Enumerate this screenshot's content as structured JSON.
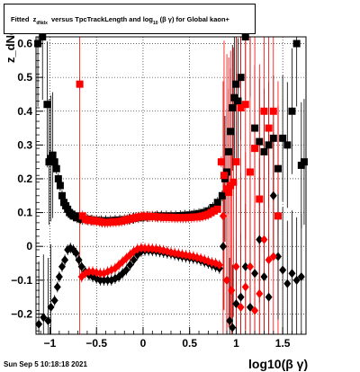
{
  "title": {
    "prefix": "Fitted",
    "z": "z",
    "z_sub": "dNdx",
    "middle": "versus TpcTrackLength and log",
    "log_sub": "10",
    "suffix": "(β γ) for Global kaon+"
  },
  "timestamp": "Sun Sep  5 10:18:18 2021",
  "chart_data": {
    "type": "scatter",
    "title": "Fitted z_dNdx versus TpcTrackLength and log10(β γ) for Global kaon+",
    "xlabel": "log10(β γ)",
    "ylabel": "z_dNdx",
    "xlim": [
      -1.15,
      1.75
    ],
    "ylim": [
      -0.26,
      0.62
    ],
    "grid": true,
    "xticks": [
      -1,
      -0.5,
      0,
      0.5,
      1,
      1.5
    ],
    "xtick_labels": [
      "−1",
      "−0.5",
      "0",
      "0.5",
      "1",
      "1.5"
    ],
    "yticks": [
      -0.2,
      -0.1,
      0,
      0.1,
      0.2,
      0.3,
      0.4,
      0.5,
      0.6
    ],
    "ytick_labels": [
      "−0.2",
      "−0.1",
      "0",
      "0.1",
      "0.2",
      "0.3",
      "0.4",
      "0.5",
      "0.6"
    ],
    "series": [
      {
        "marker": "square",
        "color": "#000000",
        "x": [
          -1.13,
          -1.08,
          -1.03,
          -1.01,
          -0.99,
          -0.97,
          -0.95,
          -0.93,
          -0.91,
          -0.89,
          -0.87,
          -0.85,
          -0.83,
          -0.81,
          -0.79,
          -0.77,
          -0.75,
          -0.73,
          -0.71,
          -0.69,
          -0.67,
          -0.65,
          -0.6,
          -0.55,
          -0.5,
          -0.45,
          -0.4,
          -0.35,
          -0.3,
          -0.25,
          -0.2,
          -0.15,
          -0.1,
          -0.05,
          0.0,
          0.05,
          0.1,
          0.15,
          0.2,
          0.25,
          0.3,
          0.35,
          0.4,
          0.45,
          0.5,
          0.55,
          0.6,
          0.65,
          0.7,
          0.75,
          0.8,
          0.85,
          0.88,
          0.9,
          0.92,
          0.94,
          0.96,
          0.98,
          1.0,
          1.02,
          1.05,
          1.1,
          1.15,
          1.2,
          1.25,
          1.3,
          1.35,
          1.4,
          1.45,
          1.5,
          1.55,
          1.6,
          1.65,
          1.7,
          1.73
        ],
        "y": [
          0.6,
          0.62,
          0.42,
          0.25,
          0.26,
          0.27,
          0.25,
          0.23,
          0.2,
          0.18,
          0.15,
          0.13,
          0.12,
          0.11,
          0.1,
          0.095,
          0.09,
          0.09,
          0.085,
          0.085,
          0.082,
          0.08,
          0.08,
          0.078,
          0.077,
          0.076,
          0.076,
          0.076,
          0.077,
          0.078,
          0.079,
          0.081,
          0.083,
          0.085,
          0.087,
          0.088,
          0.089,
          0.09,
          0.09,
          0.09,
          0.09,
          0.09,
          0.091,
          0.092,
          0.093,
          0.095,
          0.097,
          0.1,
          0.105,
          0.115,
          0.13,
          0.15,
          0.2,
          0.22,
          0.28,
          0.34,
          0.41,
          0.44,
          0.48,
          0.43,
          0.5,
          0.62,
          0.63,
          0.35,
          0.31,
          0.28,
          0.3,
          0.32,
          0.23,
          0.32,
          0.3,
          0.4,
          0.6,
          0.24,
          0.25
        ]
      },
      {
        "marker": "square",
        "color": "#ff0000",
        "x": [
          -0.68,
          -0.65,
          -0.62,
          -0.59,
          -0.56,
          -0.53,
          -0.5,
          -0.47,
          -0.44,
          -0.41,
          -0.38,
          -0.35,
          -0.32,
          -0.29,
          -0.26,
          -0.23,
          -0.2,
          -0.17,
          -0.14,
          -0.11,
          -0.08,
          -0.05,
          -0.02,
          0.01,
          0.04,
          0.07,
          0.1,
          0.13,
          0.16,
          0.19,
          0.22,
          0.25,
          0.28,
          0.31,
          0.34,
          0.37,
          0.4,
          0.43,
          0.46,
          0.49,
          0.52,
          0.55,
          0.58,
          0.61,
          0.64,
          0.67,
          0.7,
          0.73,
          0.76,
          0.8,
          0.84,
          0.87,
          0.9,
          0.92,
          0.94,
          0.97,
          1.0,
          1.05,
          1.1,
          1.15,
          1.2,
          1.25,
          1.3,
          1.35,
          1.4,
          1.45
        ],
        "y": [
          0.48,
          0.09,
          0.08,
          0.078,
          0.077,
          0.076,
          0.075,
          0.074,
          0.072,
          0.071,
          0.071,
          0.072,
          0.073,
          0.073,
          0.074,
          0.075,
          0.077,
          0.079,
          0.081,
          0.083,
          0.085,
          0.087,
          0.088,
          0.089,
          0.089,
          0.088,
          0.088,
          0.088,
          0.087,
          0.087,
          0.086,
          0.086,
          0.086,
          0.086,
          0.085,
          0.085,
          0.085,
          0.085,
          0.085,
          0.086,
          0.086,
          0.087,
          0.087,
          0.088,
          0.09,
          0.092,
          0.095,
          0.1,
          0.105,
          0.11,
          0.25,
          0.21,
          0.17,
          0.16,
          0.18,
          0.19,
          0.25,
          0.41,
          0.42,
          0.22,
          0.29,
          0.14,
          0.4,
          0.35,
          0.4,
          0.09
        ]
      },
      {
        "marker": "diamond",
        "color": "#000000",
        "x": [
          -1.12,
          -1.07,
          -1.02,
          -0.99,
          -0.95,
          -0.92,
          -0.9,
          -0.87,
          -0.84,
          -0.81,
          -0.78,
          -0.75,
          -0.72,
          -0.69,
          -0.66,
          -0.62,
          -0.58,
          -0.54,
          -0.5,
          -0.46,
          -0.42,
          -0.38,
          -0.34,
          -0.3,
          -0.26,
          -0.22,
          -0.18,
          -0.14,
          -0.1,
          -0.06,
          -0.02,
          0.02,
          0.06,
          0.1,
          0.14,
          0.18,
          0.22,
          0.26,
          0.3,
          0.34,
          0.38,
          0.42,
          0.46,
          0.5,
          0.54,
          0.58,
          0.62,
          0.66,
          0.7,
          0.74,
          0.78,
          0.82,
          0.86,
          0.9,
          0.93,
          0.96,
          1.0,
          1.05,
          1.1,
          1.15,
          1.2,
          1.25,
          1.3,
          1.35,
          1.4,
          1.45,
          1.5,
          1.55,
          1.6,
          1.65,
          1.7
        ],
        "y": [
          -0.23,
          -0.21,
          -0.22,
          -0.18,
          -0.16,
          -0.12,
          -0.09,
          -0.06,
          -0.04,
          -0.01,
          -0.005,
          -0.01,
          -0.02,
          -0.04,
          -0.06,
          -0.075,
          -0.085,
          -0.09,
          -0.095,
          -0.1,
          -0.1,
          -0.1,
          -0.1,
          -0.095,
          -0.09,
          -0.08,
          -0.07,
          -0.055,
          -0.04,
          -0.025,
          -0.015,
          -0.012,
          -0.012,
          -0.013,
          -0.014,
          -0.016,
          -0.018,
          -0.02,
          -0.022,
          -0.025,
          -0.028,
          -0.03,
          -0.032,
          -0.034,
          -0.036,
          -0.038,
          -0.042,
          -0.046,
          -0.05,
          -0.055,
          -0.06,
          -0.065,
          0.0,
          -0.1,
          -0.22,
          -0.24,
          -0.17,
          -0.15,
          -0.06,
          -0.18,
          -0.08,
          0.02,
          -0.09,
          -0.15,
          0.15,
          -0.03,
          -0.07,
          -0.11,
          -0.08,
          -0.1,
          -0.09
        ]
      },
      {
        "marker": "diamond",
        "color": "#ff0000",
        "x": [
          -0.66,
          -0.62,
          -0.58,
          -0.54,
          -0.5,
          -0.46,
          -0.42,
          -0.38,
          -0.34,
          -0.3,
          -0.26,
          -0.22,
          -0.18,
          -0.14,
          -0.1,
          -0.06,
          -0.02,
          0.02,
          0.06,
          0.1,
          0.14,
          0.18,
          0.22,
          0.26,
          0.3,
          0.34,
          0.38,
          0.42,
          0.46,
          0.5,
          0.54,
          0.58,
          0.62,
          0.66,
          0.7,
          0.74,
          0.78,
          0.82,
          0.86,
          0.9,
          0.95,
          1.0,
          1.05,
          1.1,
          1.15,
          1.2,
          1.25,
          1.3,
          1.35,
          1.4
        ],
        "y": [
          -0.09,
          -0.08,
          -0.075,
          -0.075,
          -0.078,
          -0.08,
          -0.08,
          -0.075,
          -0.07,
          -0.065,
          -0.055,
          -0.045,
          -0.035,
          -0.025,
          -0.015,
          -0.008,
          -0.005,
          -0.006,
          -0.006,
          -0.007,
          -0.008,
          -0.01,
          -0.012,
          -0.015,
          -0.018,
          -0.02,
          -0.022,
          -0.024,
          -0.026,
          -0.028,
          -0.03,
          -0.033,
          -0.036,
          -0.04,
          -0.044,
          -0.048,
          -0.05,
          -0.055,
          0.09,
          -0.1,
          -0.13,
          -0.06,
          -0.18,
          -0.12,
          -0.06,
          -0.19,
          -0.14,
          0.02,
          -0.04,
          -0.03
        ]
      }
    ]
  }
}
